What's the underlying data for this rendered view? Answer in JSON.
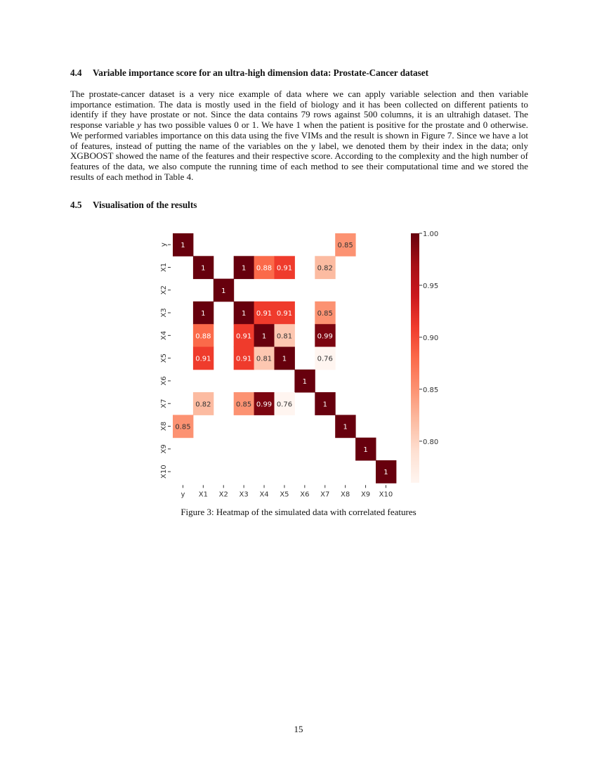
{
  "section_44": {
    "number": "4.4",
    "title": "Variable importance score for an ultra-high dimension data: Prostate-Cancer dataset"
  },
  "paragraph": {
    "part1": "The prostate-cancer dataset is a very nice example of data where we can apply variable selection and then variable importance estimation. The data is mostly used in the field of biology and it has been collected on different patients to identify if they have prostate or not. Since the data contains 79 rows against 500 columns, it is an ultrahigh dataset. The response variable ",
    "var": "y",
    "part2": " has two possible values 0 or 1. We have 1 when the patient is positive for the prostate and 0 otherwise. We performed variables importance on this data using the five VIMs and the result is shown in Figure 7. Since we have a lot of features, instead of putting the name of the variables on the y label, we denoted them by their index in the data; only XGBOOST showed the name of the features and their respective score. According to the complexity and the high number of features of the data, we also compute the running time of each method to see their computational time and we stored the results of each method in Table 4."
  },
  "section_45": {
    "number": "4.5",
    "title": "Visualisation of the results"
  },
  "caption": "Figure 3: Heatmap of the simulated data with correlated features",
  "page_number": "15",
  "chart_data": {
    "type": "heatmap",
    "colormap": "Reds",
    "x_labels": [
      "y",
      "X1",
      "X2",
      "X3",
      "X4",
      "X5",
      "X6",
      "X7",
      "X8",
      "X9",
      "X10"
    ],
    "y_labels": [
      "y",
      "X1",
      "X2",
      "X3",
      "X4",
      "X5",
      "X6",
      "X7",
      "X8",
      "X9",
      "X10"
    ],
    "values": [
      [
        1,
        null,
        null,
        null,
        null,
        null,
        null,
        null,
        0.85,
        null,
        null
      ],
      [
        null,
        1,
        null,
        1,
        0.88,
        0.91,
        null,
        0.82,
        null,
        null,
        null
      ],
      [
        null,
        null,
        1,
        null,
        null,
        null,
        null,
        null,
        null,
        null,
        null
      ],
      [
        null,
        1,
        null,
        1,
        0.91,
        0.91,
        null,
        0.85,
        null,
        null,
        null
      ],
      [
        null,
        0.88,
        null,
        0.91,
        1,
        0.81,
        null,
        0.99,
        null,
        null,
        null
      ],
      [
        null,
        0.91,
        null,
        0.91,
        0.81,
        1,
        null,
        0.76,
        null,
        null,
        null
      ],
      [
        null,
        null,
        null,
        null,
        null,
        null,
        1,
        null,
        null,
        null,
        null
      ],
      [
        null,
        0.82,
        null,
        0.85,
        0.99,
        0.76,
        null,
        1,
        null,
        null,
        null
      ],
      [
        0.85,
        null,
        null,
        null,
        null,
        null,
        null,
        null,
        1,
        null,
        null
      ],
      [
        null,
        null,
        null,
        null,
        null,
        null,
        null,
        null,
        null,
        1,
        null
      ],
      [
        null,
        null,
        null,
        null,
        null,
        null,
        null,
        null,
        null,
        null,
        1
      ]
    ],
    "colorbar": {
      "range": [
        0.76,
        1.0
      ],
      "ticks": [
        "0.80",
        "0.85",
        "0.90",
        "0.95",
        "1.00"
      ]
    }
  }
}
